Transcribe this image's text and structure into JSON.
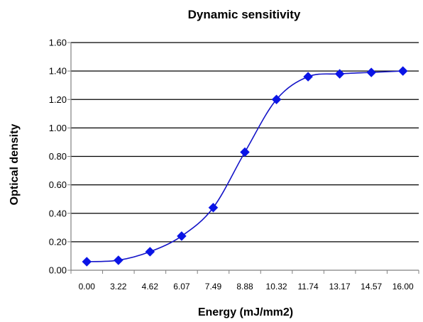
{
  "chart_data": {
    "type": "line",
    "title": "Dynamic sensitivity",
    "xlabel": "Energy (mJ/mm2)",
    "ylabel": "Optical density",
    "categories": [
      "0.00",
      "3.22",
      "4.62",
      "6.07",
      "7.49",
      "8.88",
      "10.32",
      "11.74",
      "13.17",
      "14.57",
      "16.00"
    ],
    "series": [
      {
        "values": [
          0.06,
          0.07,
          0.13,
          0.24,
          0.44,
          0.83,
          1.2,
          1.36,
          1.38,
          1.39,
          1.4
        ]
      }
    ],
    "ylim": [
      0,
      1.6
    ],
    "yticks": [
      "0.00",
      "0.20",
      "0.40",
      "0.60",
      "0.80",
      "1.00",
      "1.20",
      "1.40",
      "1.60"
    ],
    "grid": true,
    "legend": "none",
    "colors": {
      "line": "#1414c8",
      "marker": "#0a14e6",
      "grid": "#000000",
      "axis": "#808080"
    }
  }
}
